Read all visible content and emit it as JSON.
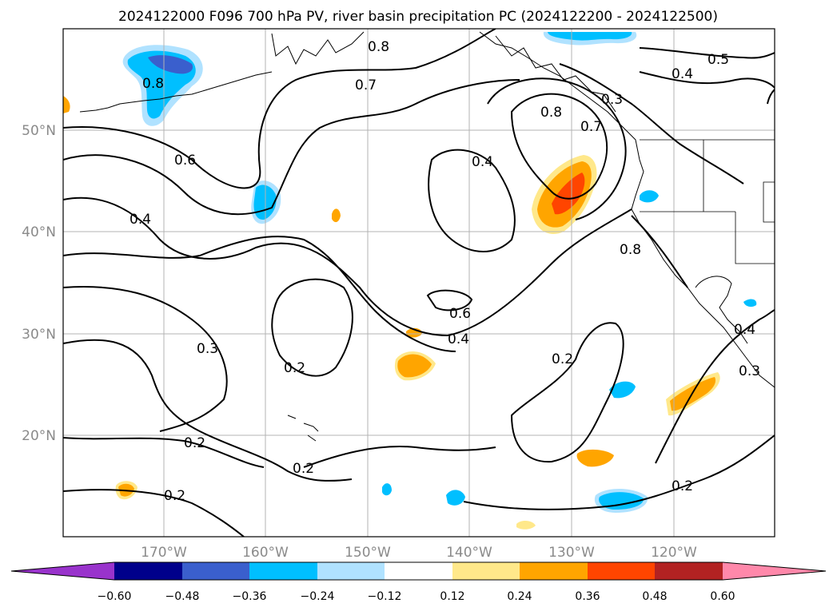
{
  "title": "2024122000 F096 700 hPa PV, river basin precipitation PC (2024122200 - 2024122500)",
  "map": {
    "lat_ticks": [
      "50°N",
      "40°N",
      "30°N",
      "20°N"
    ],
    "lon_ticks": [
      "170°W",
      "160°W",
      "150°W",
      "140°W",
      "130°W",
      "120°W"
    ],
    "contour_labels": [
      {
        "text": "0.8",
        "id": "pv-label-08-a"
      },
      {
        "text": "0.7",
        "id": "pv-label-07-a"
      },
      {
        "text": "0.5",
        "id": "pv-label-05-a"
      },
      {
        "text": "0.4",
        "id": "pv-label-04-a"
      },
      {
        "text": "0.3",
        "id": "pv-label-03-a"
      },
      {
        "text": "0.8",
        "id": "pv-label-08-b"
      },
      {
        "text": "0.7",
        "id": "pv-label-07-b"
      },
      {
        "text": "0.8",
        "id": "pv-label-08-c"
      },
      {
        "text": "0.6",
        "id": "pv-label-06-a"
      },
      {
        "text": "0.4",
        "id": "pv-label-04-b"
      },
      {
        "text": "0.4",
        "id": "pv-label-04-c"
      },
      {
        "text": "0.8",
        "id": "pv-label-08-d"
      },
      {
        "text": "0.6",
        "id": "pv-label-06-b"
      },
      {
        "text": "0.4",
        "id": "pv-label-04-d"
      },
      {
        "text": "0.3",
        "id": "pv-label-03-b"
      },
      {
        "text": "0.2",
        "id": "pv-label-02-a"
      },
      {
        "text": "0.2",
        "id": "pv-label-02-b"
      },
      {
        "text": "0.2",
        "id": "pv-label-02-c"
      },
      {
        "text": "0.2",
        "id": "pv-label-02-d"
      },
      {
        "text": "0.2",
        "id": "pv-label-02-e"
      },
      {
        "text": "0.2",
        "id": "pv-label-02-f"
      },
      {
        "text": "0.4",
        "id": "pv-label-04-e"
      },
      {
        "text": "0.3",
        "id": "pv-label-03-c"
      }
    ]
  },
  "colorbar": {
    "tick_labels": [
      "−0.60",
      "−0.48",
      "−0.36",
      "−0.24",
      "−0.12",
      "0.12",
      "0.24",
      "0.36",
      "0.48",
      "0.60"
    ],
    "colors": [
      "#9933cc",
      "#00008b",
      "#3a5fcd",
      "#00bfff",
      "#b0e2ff",
      "#ffffff",
      "#ffe88a",
      "#ffa500",
      "#ff4500",
      "#b22222",
      "#ff88aa"
    ]
  }
}
